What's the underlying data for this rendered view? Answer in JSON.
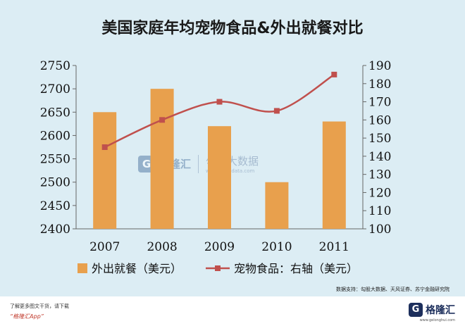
{
  "chart_data": {
    "type": "bar",
    "title": "美国家庭年均宠物食品&外出就餐对比",
    "categories": [
      "2007",
      "2008",
      "2009",
      "2010",
      "2011"
    ],
    "series": [
      {
        "name": "外出就餐（美元）",
        "type": "bar",
        "axis": "left",
        "color": "#e8a04d",
        "values": [
          2650,
          2700,
          2620,
          2500,
          2630
        ]
      },
      {
        "name": "宠物食品：右轴（美元）",
        "type": "line",
        "axis": "right",
        "color": "#c0504d",
        "values": [
          145,
          160,
          170,
          165,
          185
        ]
      }
    ],
    "y_left": {
      "min": 2400,
      "max": 2750,
      "ticks": [
        "2400",
        "2450",
        "2500",
        "2550",
        "2600",
        "2650",
        "2700",
        "2750"
      ]
    },
    "y_right": {
      "min": 100,
      "max": 190,
      "ticks": [
        "100",
        "110",
        "120",
        "130",
        "140",
        "150",
        "160",
        "170",
        "180",
        "190"
      ]
    },
    "grid": false,
    "legend_position": "bottom"
  },
  "source_note": "数据支持：勾股大数据、天风证券、苏宁金融研究院",
  "watermark": {
    "logo_letter": "G",
    "name": "格隆汇",
    "name2": "勾股大数据",
    "url": "www.gogudata.com"
  },
  "footer": {
    "hint": "了解更多图文干货，请下载",
    "app": "“格隆汇App”",
    "brand_letter": "G",
    "brand_name": "格隆汇",
    "brand_url": "www.gelonghui.com"
  }
}
